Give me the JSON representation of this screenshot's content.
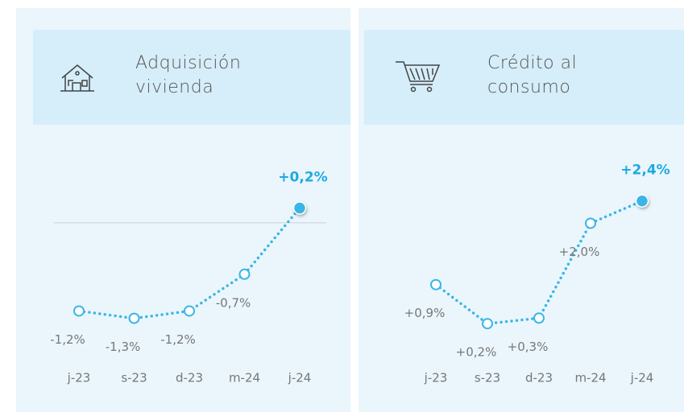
{
  "chart_data": [
    {
      "type": "line",
      "title": "Adquisición vivienda",
      "categories": [
        "j-23",
        "s-23",
        "d-23",
        "m-24",
        "j-24"
      ],
      "values": [
        -1.2,
        -1.3,
        -1.2,
        -0.7,
        0.2
      ],
      "value_labels": [
        "-1,2%",
        "-1,3%",
        "-1,2%",
        "-0,7%",
        "+0,2%"
      ],
      "color": "#3bb5e6",
      "ylim": [
        -1.6,
        0.6
      ],
      "reference_line": 0
    },
    {
      "type": "line",
      "title": "Crédito al consumo",
      "categories": [
        "j-23",
        "s-23",
        "d-23",
        "m-24",
        "j-24"
      ],
      "values": [
        0.9,
        0.2,
        0.3,
        2.0,
        2.4
      ],
      "value_labels": [
        "+0,9%",
        "+0,2%",
        "+0,3%",
        "+2,0%",
        "+2,4%"
      ],
      "color": "#3bb5e6",
      "ylim": [
        -0.1,
        2.8
      ]
    }
  ]
}
